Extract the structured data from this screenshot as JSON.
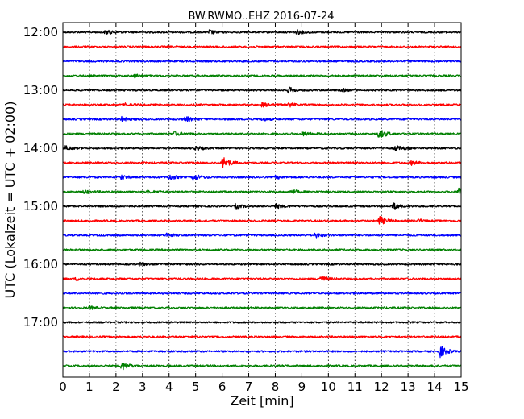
{
  "chart_data": {
    "type": "line",
    "title": "BW.RWMO..EHZ 2016-07-24",
    "xlabel": "Zeit  [min]",
    "ylabel": "UTC (Lokalzeit = UTC + 02:00)",
    "xlim": [
      0,
      15
    ],
    "x_ticks": [
      "0",
      "1",
      "2",
      "3",
      "4",
      "5",
      "6",
      "7",
      "8",
      "9",
      "10",
      "11",
      "12",
      "13",
      "14",
      "15"
    ],
    "y_ticks": [
      "12:00",
      "13:00",
      "14:00",
      "15:00",
      "16:00",
      "17:00"
    ],
    "grid": true,
    "trace_colors": [
      "#000000",
      "#ff0000",
      "#0000ff",
      "#008000"
    ],
    "traces": [
      {
        "start": "12:00",
        "events": [
          {
            "t": 1.6,
            "a": 0.3
          },
          {
            "t": 5.5,
            "a": 0.3
          },
          {
            "t": 8.8,
            "a": 0.3
          }
        ]
      },
      {
        "start": "12:15",
        "events": []
      },
      {
        "start": "12:30",
        "events": []
      },
      {
        "start": "12:45",
        "events": [
          {
            "t": 2.7,
            "a": 0.2
          }
        ]
      },
      {
        "start": "13:00",
        "events": [
          {
            "t": 8.5,
            "a": 0.4
          },
          {
            "t": 10.5,
            "a": 0.2
          }
        ]
      },
      {
        "start": "13:15",
        "events": [
          {
            "t": 2.3,
            "a": 0.2
          },
          {
            "t": 7.5,
            "a": 0.3
          },
          {
            "t": 8.5,
            "a": 0.3
          }
        ]
      },
      {
        "start": "13:30",
        "events": [
          {
            "t": 2.2,
            "a": 0.3
          },
          {
            "t": 4.6,
            "a": 0.4
          },
          {
            "t": 7.5,
            "a": 0.2
          }
        ]
      },
      {
        "start": "13:45",
        "events": [
          {
            "t": 4.2,
            "a": 0.3
          },
          {
            "t": 9.0,
            "a": 0.3
          },
          {
            "t": 11.9,
            "a": 0.7
          }
        ]
      },
      {
        "start": "14:00",
        "events": [
          {
            "t": 0.1,
            "a": 0.3
          },
          {
            "t": 5.0,
            "a": 0.3
          },
          {
            "t": 12.5,
            "a": 0.4
          }
        ]
      },
      {
        "start": "14:15",
        "events": [
          {
            "t": 6.0,
            "a": 0.9
          },
          {
            "t": 13.1,
            "a": 0.3
          }
        ]
      },
      {
        "start": "14:30",
        "events": [
          {
            "t": 2.2,
            "a": 0.3
          },
          {
            "t": 4.0,
            "a": 0.4
          },
          {
            "t": 4.9,
            "a": 0.5
          },
          {
            "t": 8.0,
            "a": 0.2
          }
        ]
      },
      {
        "start": "14:45",
        "events": [
          {
            "t": 0.8,
            "a": 0.3
          },
          {
            "t": 3.2,
            "a": 0.2
          },
          {
            "t": 8.6,
            "a": 0.3
          },
          {
            "t": 14.9,
            "a": 0.8
          }
        ]
      },
      {
        "start": "15:00",
        "events": [
          {
            "t": 6.5,
            "a": 0.3
          },
          {
            "t": 8.0,
            "a": 0.3
          },
          {
            "t": 12.4,
            "a": 0.5
          }
        ]
      },
      {
        "start": "15:15",
        "events": [
          {
            "t": 11.9,
            "a": 0.7
          },
          {
            "t": 13.4,
            "a": 0.2
          }
        ]
      },
      {
        "start": "15:30",
        "events": [
          {
            "t": 3.9,
            "a": 0.3
          },
          {
            "t": 9.5,
            "a": 0.3
          }
        ]
      },
      {
        "start": "15:45",
        "events": []
      },
      {
        "start": "16:00",
        "events": [
          {
            "t": 2.9,
            "a": 0.2
          }
        ]
      },
      {
        "start": "16:15",
        "events": [
          {
            "t": 0.5,
            "a": 0.2
          },
          {
            "t": 9.7,
            "a": 0.4
          }
        ]
      },
      {
        "start": "16:30",
        "events": []
      },
      {
        "start": "16:45",
        "events": [
          {
            "t": 1.0,
            "a": 0.2
          }
        ]
      },
      {
        "start": "17:00",
        "events": []
      },
      {
        "start": "17:15",
        "events": []
      },
      {
        "start": "17:30",
        "events": [
          {
            "t": 14.2,
            "a": 0.8
          }
        ]
      },
      {
        "start": "17:45",
        "events": [
          {
            "t": 2.2,
            "a": 0.6
          }
        ]
      }
    ]
  }
}
